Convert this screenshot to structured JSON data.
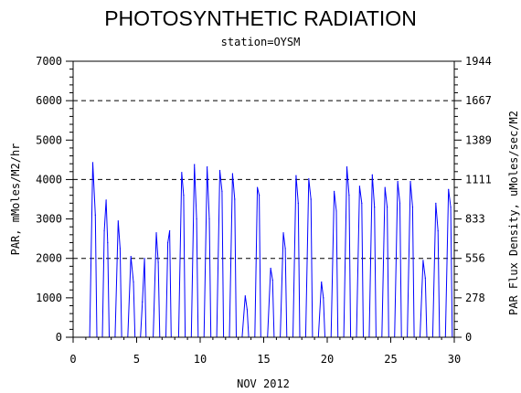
{
  "chart_data": {
    "type": "line",
    "title": "PHOTOSYNTHETIC RADIATION",
    "subtitle": "station=OYSM",
    "xlabel": "NOV 2012",
    "ylabel": "PAR, mMoles/M2/hr",
    "y2label": "PAR Flux Density, uMoles/sec/M2",
    "xlim": [
      0,
      30
    ],
    "ylim": [
      0,
      7000
    ],
    "x_ticks": [
      "0",
      "5",
      "10",
      "15",
      "20",
      "25",
      "30"
    ],
    "y_ticks": [
      "0",
      "1000",
      "2000",
      "3000",
      "4000",
      "5000",
      "6000",
      "7000"
    ],
    "y2_ticks": [
      "0",
      "278",
      "556",
      "833",
      "1111",
      "1389",
      "1667",
      "1944"
    ],
    "gridlines_y": [
      2000,
      4000,
      6000
    ],
    "grid_style": "dashed",
    "series_color": "#0000ff",
    "daily_peaks": [
      {
        "day": 1,
        "peaks": [
          {
            "x": 1.55,
            "y": 4430
          },
          {
            "x": 1.75,
            "y": 3100
          }
        ]
      },
      {
        "day": 2,
        "peaks": [
          {
            "x": 2.45,
            "y": 2700
          },
          {
            "x": 2.6,
            "y": 3480
          },
          {
            "x": 2.72,
            "y": 2400
          }
        ]
      },
      {
        "day": 3,
        "peaks": [
          {
            "x": 3.55,
            "y": 2950
          },
          {
            "x": 3.7,
            "y": 2250
          }
        ]
      },
      {
        "day": 4,
        "peaks": [
          {
            "x": 4.55,
            "y": 2050
          },
          {
            "x": 4.75,
            "y": 1400
          }
        ]
      },
      {
        "day": 5,
        "peaks": [
          {
            "x": 5.45,
            "y": 900
          },
          {
            "x": 5.62,
            "y": 2000
          }
        ]
      },
      {
        "day": 6,
        "peaks": [
          {
            "x": 6.55,
            "y": 2650
          },
          {
            "x": 6.7,
            "y": 1900
          }
        ]
      },
      {
        "day": 7,
        "peaks": [
          {
            "x": 7.45,
            "y": 2400
          },
          {
            "x": 7.6,
            "y": 2700
          }
        ]
      },
      {
        "day": 8,
        "peaks": [
          {
            "x": 8.55,
            "y": 4180
          },
          {
            "x": 8.7,
            "y": 3600
          }
        ]
      },
      {
        "day": 9,
        "peaks": [
          {
            "x": 9.55,
            "y": 4380
          },
          {
            "x": 9.72,
            "y": 3000
          }
        ]
      },
      {
        "day": 10,
        "peaks": [
          {
            "x": 10.55,
            "y": 4320
          },
          {
            "x": 10.72,
            "y": 3000
          }
        ]
      },
      {
        "day": 11,
        "peaks": [
          {
            "x": 11.55,
            "y": 4230
          },
          {
            "x": 11.72,
            "y": 3700
          }
        ]
      },
      {
        "day": 12,
        "peaks": [
          {
            "x": 12.55,
            "y": 4150
          },
          {
            "x": 12.72,
            "y": 3500
          }
        ]
      },
      {
        "day": 13,
        "peaks": [
          {
            "x": 13.55,
            "y": 1050
          },
          {
            "x": 13.7,
            "y": 700
          }
        ]
      },
      {
        "day": 14,
        "peaks": [
          {
            "x": 14.5,
            "y": 3800
          },
          {
            "x": 14.65,
            "y": 3600
          }
        ]
      },
      {
        "day": 15,
        "peaks": [
          {
            "x": 15.55,
            "y": 1750
          },
          {
            "x": 15.7,
            "y": 1450
          }
        ]
      },
      {
        "day": 16,
        "peaks": [
          {
            "x": 16.55,
            "y": 2650
          },
          {
            "x": 16.7,
            "y": 2250
          }
        ]
      },
      {
        "day": 17,
        "peaks": [
          {
            "x": 17.55,
            "y": 4100
          },
          {
            "x": 17.72,
            "y": 3400
          }
        ]
      },
      {
        "day": 18,
        "peaks": [
          {
            "x": 18.55,
            "y": 4020
          },
          {
            "x": 18.72,
            "y": 3500
          }
        ]
      },
      {
        "day": 19,
        "peaks": [
          {
            "x": 19.55,
            "y": 1400
          },
          {
            "x": 19.7,
            "y": 1000
          }
        ]
      },
      {
        "day": 20,
        "peaks": [
          {
            "x": 20.55,
            "y": 3700
          },
          {
            "x": 20.72,
            "y": 3200
          }
        ]
      },
      {
        "day": 21,
        "peaks": [
          {
            "x": 21.55,
            "y": 4320
          },
          {
            "x": 21.72,
            "y": 3600
          }
        ]
      },
      {
        "day": 22,
        "peaks": [
          {
            "x": 22.55,
            "y": 3830
          },
          {
            "x": 22.72,
            "y": 3400
          }
        ]
      },
      {
        "day": 23,
        "peaks": [
          {
            "x": 23.55,
            "y": 4120
          },
          {
            "x": 23.72,
            "y": 3300
          }
        ]
      },
      {
        "day": 24,
        "peaks": [
          {
            "x": 24.55,
            "y": 3800
          },
          {
            "x": 24.72,
            "y": 3300
          }
        ]
      },
      {
        "day": 25,
        "peaks": [
          {
            "x": 25.55,
            "y": 3950
          },
          {
            "x": 25.72,
            "y": 3400
          }
        ]
      },
      {
        "day": 26,
        "peaks": [
          {
            "x": 26.55,
            "y": 3950
          },
          {
            "x": 26.72,
            "y": 3300
          }
        ]
      },
      {
        "day": 27,
        "peaks": [
          {
            "x": 27.55,
            "y": 1950
          },
          {
            "x": 27.72,
            "y": 1500
          }
        ]
      },
      {
        "day": 28,
        "peaks": [
          {
            "x": 28.55,
            "y": 3400
          },
          {
            "x": 28.72,
            "y": 2700
          }
        ]
      },
      {
        "day": 29,
        "peaks": [
          {
            "x": 29.55,
            "y": 3750
          },
          {
            "x": 29.72,
            "y": 3300
          }
        ]
      }
    ]
  }
}
